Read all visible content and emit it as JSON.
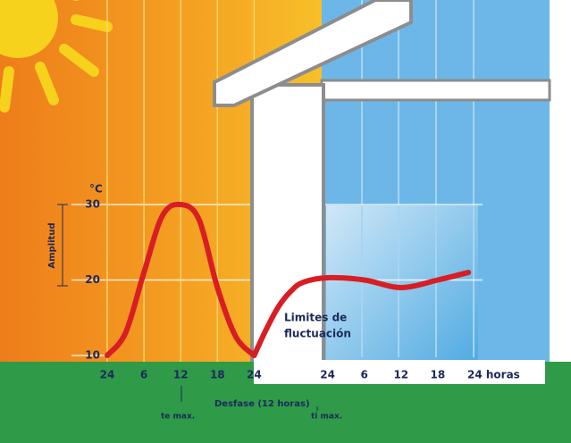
{
  "chart_data": {
    "type": "line",
    "y_label": "°C",
    "annotations": {
      "amplitude": "Amplitud",
      "limits": [
        "Limites de",
        "fluctuación"
      ],
      "lag": "Desfase (12 horas)",
      "te_max": "te max.",
      "ti_max": "ti max."
    },
    "series": [
      {
        "color": "#d81e24",
        "x": [
          0,
          3,
          6,
          9,
          12,
          15,
          18,
          21,
          24
        ],
        "values": [
          10,
          13,
          21,
          28.5,
          30,
          28,
          19,
          12.5,
          10
        ]
      },
      {
        "color": "#d81e24",
        "x": [
          24,
          26,
          28,
          30,
          32,
          36,
          42,
          48,
          54,
          59
        ],
        "values": [
          10,
          13.5,
          16.5,
          18.5,
          19.7,
          20.3,
          20,
          19,
          20,
          21
        ]
      }
    ],
    "xlim": [
      0,
      60
    ],
    "xticks": [
      {
        "value": 0,
        "label": "24"
      },
      6,
      12,
      18,
      24,
      {
        "value": 36,
        "label": "24"
      },
      {
        "value": 42,
        "label": "6"
      },
      {
        "value": 48,
        "label": "12"
      },
      {
        "value": 54,
        "label": "18"
      },
      {
        "value": 60,
        "label": "24 horas"
      }
    ],
    "ylim": [
      10,
      30
    ],
    "yticks": [
      10,
      20,
      30
    ],
    "grid": true
  }
}
